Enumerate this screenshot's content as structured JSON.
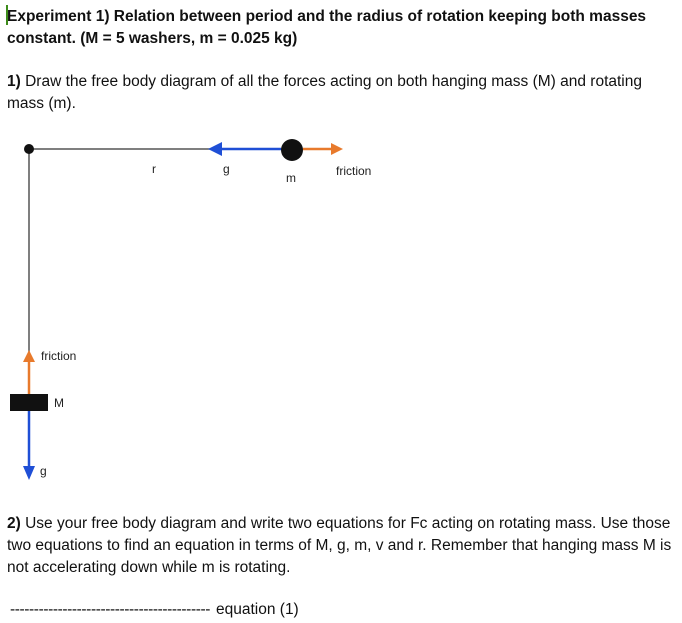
{
  "heading": "Experiment 1) Relation between period and the radius of rotation keeping both masses constant. (M = 5 washers, m = 0.025 kg)",
  "question1": {
    "number": "1)",
    "text": " Draw the free body diagram of all the forces acting on both hanging mass (M) and rotating mass (m)."
  },
  "diagram": {
    "label_r": "r",
    "label_g_top": "g",
    "label_m": "m",
    "label_friction_top": "friction",
    "label_friction_side": "friction",
    "label_M": "M",
    "label_g_bottom": "g",
    "colors": {
      "gravity_arrow": "#1f4fd6",
      "friction_arrow": "#e87a2c",
      "string": "#555555",
      "mass": "#111111"
    }
  },
  "question2": {
    "number": "2)",
    "text": " Use your free body diagram and write two equations for Fc acting on rotating mass. Use those two equations to find an equation in terms of M, g, m, v and r. Remember that hanging mass M is not accelerating down while m is rotating."
  },
  "answer_blank": {
    "dashes": "------------------------------------------",
    "label": "equation (1)"
  }
}
